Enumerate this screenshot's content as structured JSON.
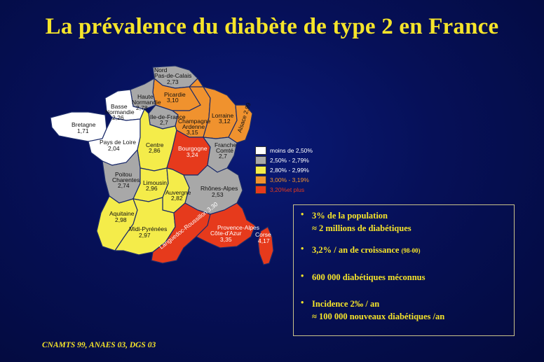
{
  "title": "La prévalence du diabète de type 2 en France",
  "source": "CNAMTS 99, ANAES 03, DGS 03",
  "colors": {
    "white": "#ffffff",
    "gray": "#a8a8a8",
    "yellow": "#f4ec4a",
    "orange": "#f0922e",
    "red": "#e63a1c",
    "text_yellow": "#f5e42a"
  },
  "legend": [
    {
      "label": "moins de 2,50%",
      "color": "#ffffff",
      "text_color": "#ffffff"
    },
    {
      "label": "2,50% - 2,79%",
      "color": "#a8a8a8",
      "text_color": "#ffffff"
    },
    {
      "label": "2,80% - 2,99%",
      "color": "#f4ec4a",
      "text_color": "#ffffff"
    },
    {
      "label": "3,00% - 3,19%",
      "color": "#f0922e",
      "text_color": "#f0922e"
    },
    {
      "label": "3,20%et plus",
      "color": "#e63a1c",
      "text_color": "#e63a1c"
    }
  ],
  "regions": [
    {
      "name": "Nord Pas-de-Calais",
      "value": "2,73"
    },
    {
      "name": "Picardie",
      "value": "3,10"
    },
    {
      "name": "Haute Normandie",
      "value": "2,78"
    },
    {
      "name": "Basse Normandie",
      "value": "2,26"
    },
    {
      "name": "Bretagne",
      "value": "1,71"
    },
    {
      "name": "Ile-de-France",
      "value": "2,7"
    },
    {
      "name": "Champagne Ardenne",
      "value": "3,15"
    },
    {
      "name": "Lorraine",
      "value": "3,12"
    },
    {
      "name": "Alsace",
      "value": "2,99"
    },
    {
      "name": "Pays de Loire",
      "value": "2,04"
    },
    {
      "name": "Centre",
      "value": "2,86"
    },
    {
      "name": "Bourgogne",
      "value": "3,24"
    },
    {
      "name": "Franche Comté",
      "value": "2,7"
    },
    {
      "name": "Poitou Charentes",
      "value": "2,74"
    },
    {
      "name": "Limousin",
      "value": "2,96"
    },
    {
      "name": "Auvergne",
      "value": "2,82"
    },
    {
      "name": "Rhônes-Alpes",
      "value": "2,53"
    },
    {
      "name": "Aquitaine",
      "value": "2,98"
    },
    {
      "name": "Midi-Pyrénées",
      "value": "2,97"
    },
    {
      "name": "Languedoc-Roussillon",
      "value": "3,30"
    },
    {
      "name": "Provence-Alpes Côte d'Azur",
      "value": "3,35"
    },
    {
      "name": "Corse",
      "value": "4,17"
    }
  ],
  "info": {
    "bullet": "•",
    "item1_line1": "3% de la population",
    "item1_line2": "≈  2 millions de diabétiques",
    "item2_main": "3,2% / an de croissance",
    "item2_small": "(98-00)",
    "item3": "600 000 diabétiques méconnus",
    "item4_line1": "Incidence 2‰ / an",
    "item4_line2": "≈ 100 000 nouveaux diabétiques /an"
  }
}
